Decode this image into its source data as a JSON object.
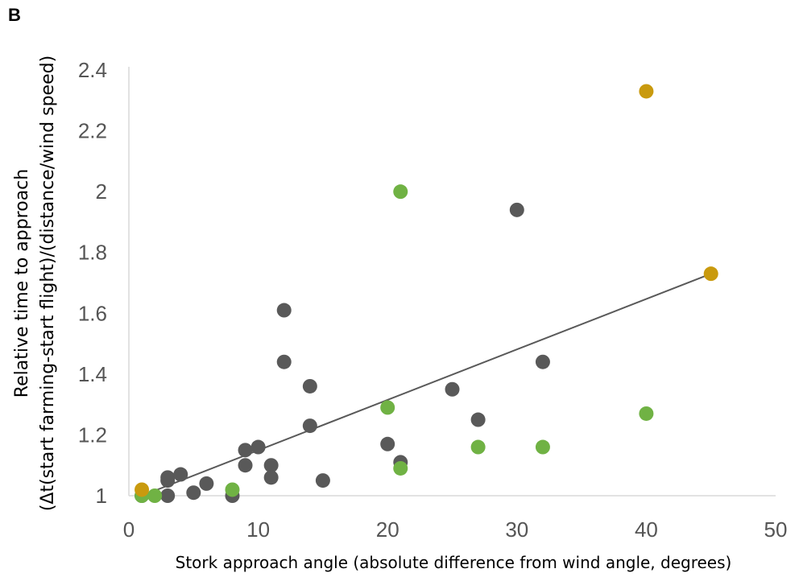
{
  "panel_label": "B",
  "chart_data": {
    "type": "scatter",
    "xlabel": "Stork approach angle (absolute difference from wind angle, degrees)",
    "ylabel_lines": [
      "Relative time to approach",
      "(Δt(start farming-start flight)/(distance/wind speed)"
    ],
    "xlim": [
      0,
      50
    ],
    "ylim": [
      1,
      2.4
    ],
    "x_ticks": [
      0,
      10,
      20,
      30,
      40,
      50
    ],
    "y_ticks": [
      1,
      1.2,
      1.4,
      1.6,
      1.8,
      2,
      2.2,
      2.4
    ],
    "x_tick_labels": [
      "0",
      "10",
      "20",
      "30",
      "40",
      "50"
    ],
    "y_tick_labels": [
      "1",
      "1.2",
      "1.4",
      "1.6",
      "1.8",
      "2",
      "2.2",
      "2.4"
    ],
    "grid": false,
    "legend": "none",
    "trendline": {
      "x": [
        1,
        45
      ],
      "y": [
        1.0,
        1.73
      ],
      "color": "#595959"
    },
    "series": [
      {
        "color": "#595959",
        "points": [
          [
            1,
            1.0
          ],
          [
            3,
            1.0
          ],
          [
            3,
            1.05
          ],
          [
            3,
            1.06
          ],
          [
            4,
            1.07
          ],
          [
            5,
            1.01
          ],
          [
            6,
            1.04
          ],
          [
            8,
            1.0
          ],
          [
            9,
            1.1
          ],
          [
            9,
            1.15
          ],
          [
            10,
            1.16
          ],
          [
            11,
            1.1
          ],
          [
            11,
            1.06
          ],
          [
            12,
            1.61
          ],
          [
            12,
            1.44
          ],
          [
            14,
            1.36
          ],
          [
            14,
            1.23
          ],
          [
            15,
            1.05
          ],
          [
            20,
            1.17
          ],
          [
            21,
            1.11
          ],
          [
            25,
            1.35
          ],
          [
            27,
            1.25
          ],
          [
            30,
            1.94
          ],
          [
            32,
            1.44
          ]
        ]
      },
      {
        "color": "#70B244",
        "points": [
          [
            1,
            1.0
          ],
          [
            2,
            1.0
          ],
          [
            8,
            1.02
          ],
          [
            20,
            1.29
          ],
          [
            21,
            1.09
          ],
          [
            21,
            2.0
          ],
          [
            27,
            1.16
          ],
          [
            32,
            1.16
          ],
          [
            40,
            1.27
          ]
        ]
      },
      {
        "color": "#C99A0E",
        "points": [
          [
            1,
            1.02
          ],
          [
            40,
            2.33
          ],
          [
            45,
            1.73
          ]
        ]
      }
    ]
  }
}
